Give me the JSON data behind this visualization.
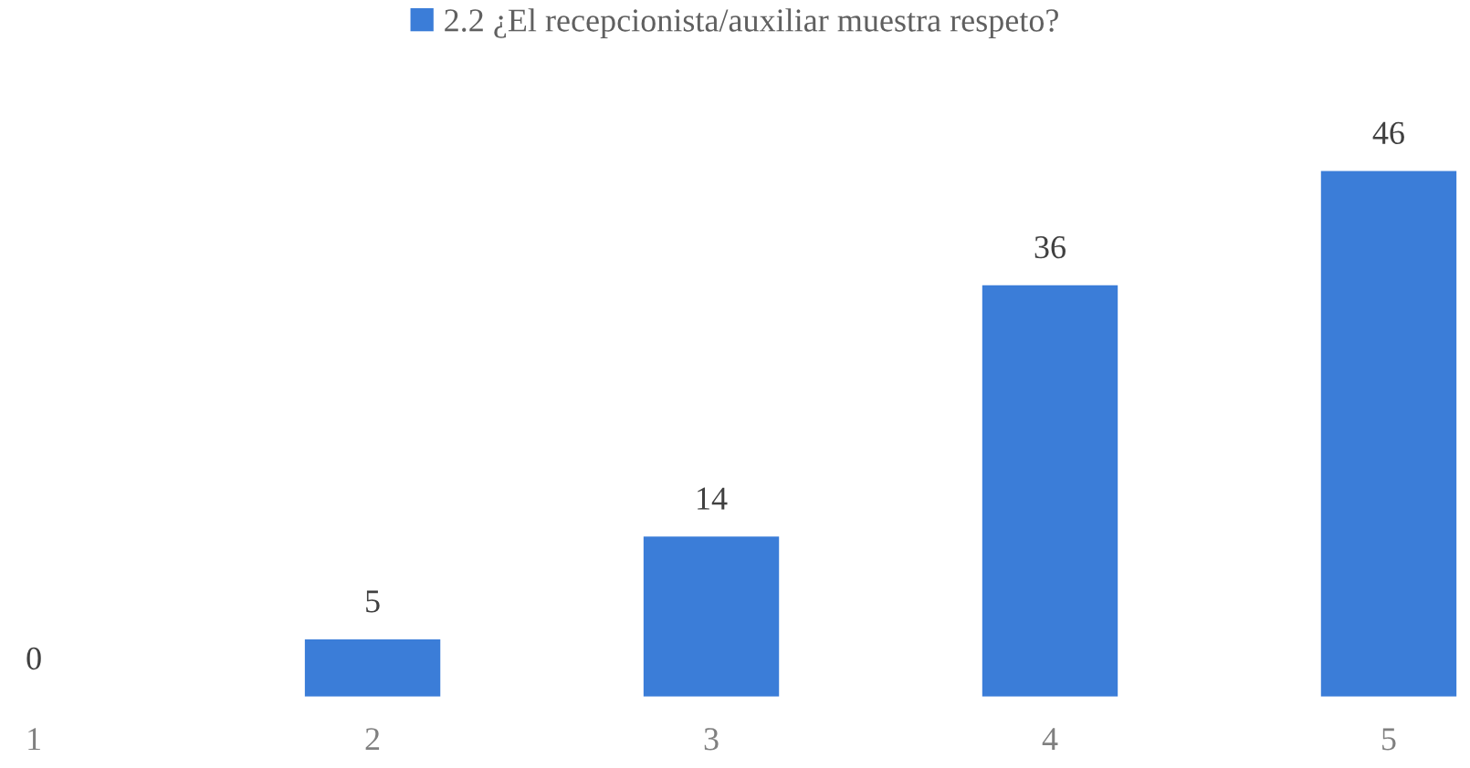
{
  "chart_data": {
    "type": "bar",
    "categories": [
      "1",
      "2",
      "3",
      "4",
      "5"
    ],
    "series": [
      {
        "name": "2.2 ¿El recepcionista/auxiliar muestra respeto?",
        "color": "#3b7dd8",
        "values": [
          0,
          5,
          14,
          36,
          46
        ]
      }
    ],
    "data_labels": true,
    "legend": "top",
    "grid": false,
    "tick_labels": "x"
  }
}
